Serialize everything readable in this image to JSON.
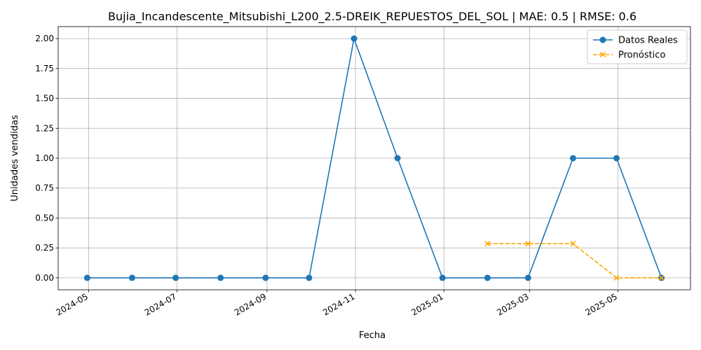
{
  "chart_data": {
    "type": "line",
    "title": "Bujia_Incandescente_Mitsubishi_L200_2.5-DREIK_REPUESTOS_DEL_SOL | MAE: 0.5 | RMSE: 0.6",
    "xlabel": "Fecha",
    "ylabel": "Unidades vendidas",
    "xlim": [
      "2024-04-10",
      "2025-06-20"
    ],
    "ylim": [
      -0.1,
      2.1
    ],
    "x_ticks": [
      "2024-05",
      "2024-07",
      "2024-09",
      "2024-11",
      "2025-01",
      "2025-03",
      "2025-05"
    ],
    "x_tick_dates": [
      "2024-05-01",
      "2024-07-01",
      "2024-09-01",
      "2024-11-01",
      "2025-01-01",
      "2025-03-01",
      "2025-05-01"
    ],
    "y_ticks": [
      "0.00",
      "0.25",
      "0.50",
      "0.75",
      "1.00",
      "1.25",
      "1.50",
      "1.75",
      "2.00"
    ],
    "grid": true,
    "legend": "top-right",
    "series": [
      {
        "name": "Datos Reales",
        "color": "#1f77b4",
        "style": "solid",
        "marker": "circle",
        "x": [
          "2024-04-30",
          "2024-05-31",
          "2024-06-30",
          "2024-07-31",
          "2024-08-31",
          "2024-09-30",
          "2024-10-31",
          "2024-11-30",
          "2024-12-31",
          "2025-01-31",
          "2025-02-28",
          "2025-03-31",
          "2025-04-30",
          "2025-05-31"
        ],
        "values": [
          0,
          0,
          0,
          0,
          0,
          0,
          2,
          1,
          0,
          0,
          0,
          1,
          1,
          0
        ]
      },
      {
        "name": "Pronóstico",
        "color": "#ffa500",
        "style": "dashed",
        "marker": "x",
        "x": [
          "2025-01-31",
          "2025-02-28",
          "2025-03-31",
          "2025-04-30",
          "2025-05-31"
        ],
        "values": [
          0.2857,
          0.2857,
          0.2857,
          0,
          0
        ]
      }
    ]
  }
}
